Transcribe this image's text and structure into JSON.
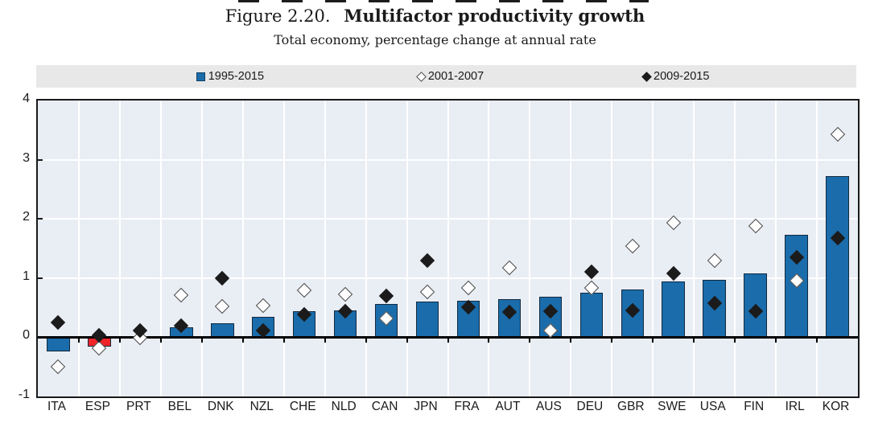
{
  "figure": {
    "label": "Figure 2.20.",
    "title": "Multifactor productivity growth",
    "subtitle": "Total economy, percentage change at annual rate"
  },
  "legend": [
    {
      "label": "1995-2015",
      "marker": "blue-square"
    },
    {
      "label": "2001-2007",
      "marker": "white-diamond"
    },
    {
      "label": "2009-2015",
      "marker": "black-diamond"
    }
  ],
  "colors": {
    "bar_blue": "#1a6cab",
    "bar_highlight_red": "#ee2429",
    "plot_background": "#e9edf4",
    "legend_background": "#e8e8e8",
    "gridline": "#ffffff",
    "axis": "#1a1a1a",
    "diamond_white": "#ffffff",
    "diamond_black": "#1b1b1b"
  },
  "chart_data": {
    "type": "bar",
    "title": "Figure 2.20. Multifactor productivity growth",
    "subtitle": "Total economy, percentage change at annual rate",
    "xlabel": "",
    "ylabel": "",
    "ylim": [
      -1,
      4
    ],
    "yticks": [
      -1,
      0,
      1,
      2,
      3,
      4
    ],
    "grid": true,
    "legend_position": "top",
    "highlight_category": "ESP",
    "categories": [
      "ITA",
      "ESP",
      "PRT",
      "BEL",
      "DNK",
      "NZL",
      "CHE",
      "NLD",
      "CAN",
      "JPN",
      "FRA",
      "AUT",
      "AUS",
      "DEU",
      "GBR",
      "SWE",
      "USA",
      "FIN",
      "IRL",
      "KOR"
    ],
    "series": [
      {
        "name": "1995-2015",
        "type": "bar",
        "marker": "blue-bar",
        "values": [
          -0.22,
          -0.15,
          0.02,
          0.17,
          0.23,
          0.34,
          0.44,
          0.46,
          0.56,
          0.61,
          0.62,
          0.64,
          0.68,
          0.75,
          0.81,
          0.94,
          0.97,
          1.08,
          1.73,
          2.72
        ]
      },
      {
        "name": "2001-2007",
        "type": "scatter",
        "marker": "white-diamond",
        "values": [
          -0.5,
          -0.18,
          -0.01,
          0.71,
          0.52,
          0.54,
          0.8,
          0.73,
          0.32,
          0.77,
          0.84,
          1.18,
          0.12,
          0.83,
          1.54,
          1.94,
          1.3,
          1.88,
          0.96,
          3.43
        ]
      },
      {
        "name": "2009-2015",
        "type": "scatter",
        "marker": "black-diamond",
        "values": [
          0.25,
          0.03,
          0.11,
          0.2,
          1.0,
          0.12,
          0.39,
          0.44,
          0.7,
          1.29,
          0.51,
          0.43,
          0.44,
          1.1,
          0.45,
          1.08,
          0.58,
          0.44,
          1.35,
          1.67
        ]
      }
    ]
  }
}
